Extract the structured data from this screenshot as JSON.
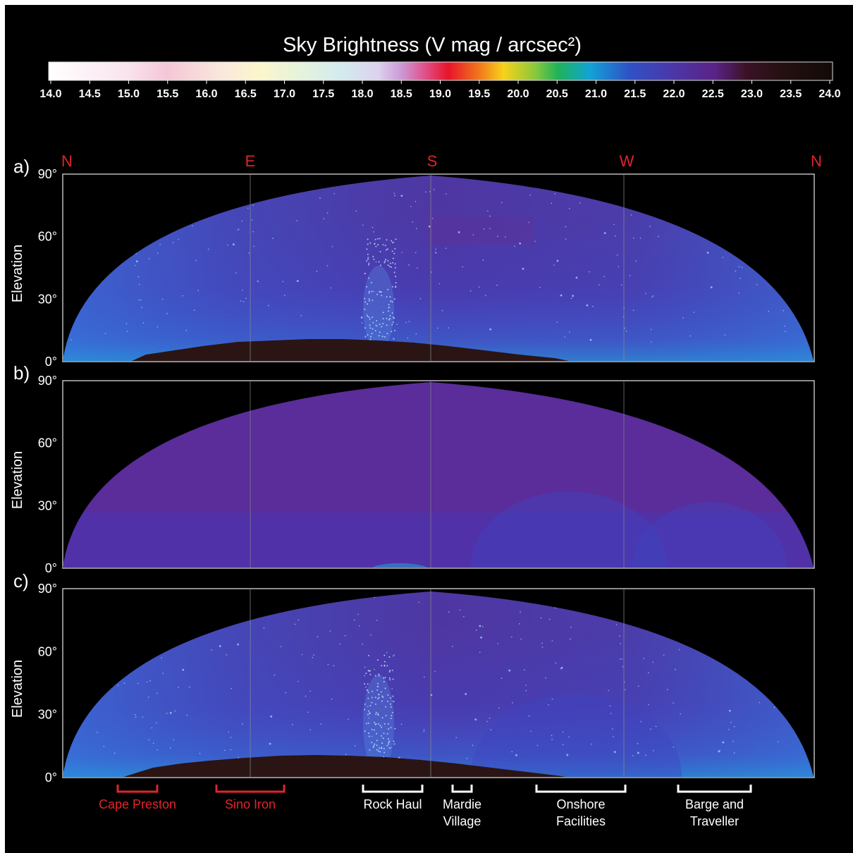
{
  "colorbar": {
    "title": "Sky Brightness (V mag / arcsec²)",
    "ticks": [
      "14.0",
      "14.5",
      "15.0",
      "15.5",
      "16.0",
      "16.5",
      "17.0",
      "17.5",
      "18.0",
      "18.5",
      "19.0",
      "19.5",
      "20.0",
      "20.5",
      "21.0",
      "21.5",
      "22.0",
      "22.5",
      "23.0",
      "23.5",
      "24.0"
    ]
  },
  "directions": [
    "N",
    "E",
    "S",
    "W",
    "N"
  ],
  "panels": [
    {
      "label": "a)",
      "ylabel": "Elevation",
      "elevation_ticks": [
        "90°",
        "60°",
        "30°",
        "0°"
      ]
    },
    {
      "label": "b)",
      "ylabel": "Elevation",
      "elevation_ticks": [
        "90°",
        "60°",
        "30°",
        "0°"
      ]
    },
    {
      "label": "c)",
      "ylabel": "Elevation",
      "elevation_ticks": [
        "90°",
        "60°",
        "30°",
        "0°"
      ]
    }
  ],
  "light_sources": [
    {
      "lines": [
        "Cape Preston"
      ],
      "color": "#e0242b"
    },
    {
      "lines": [
        "Sino Iron"
      ],
      "color": "#e0242b"
    },
    {
      "lines": [
        "Rock Haul"
      ],
      "color": "#ffffff"
    },
    {
      "lines": [
        "Mardie",
        "Village"
      ],
      "color": "#ffffff"
    },
    {
      "lines": [
        "Onshore",
        "Facilities"
      ],
      "color": "#ffffff"
    },
    {
      "lines": [
        "Barge and",
        "Traveller"
      ],
      "color": "#ffffff"
    }
  ]
}
